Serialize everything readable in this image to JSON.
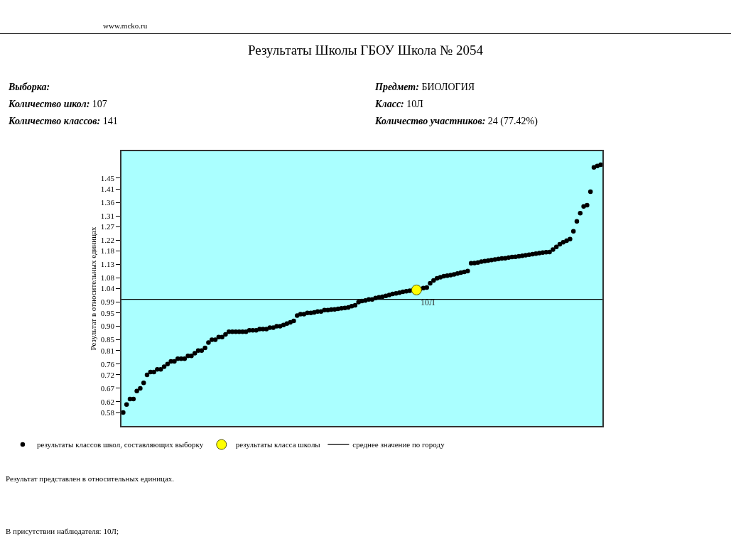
{
  "chart_data": {
    "type": "scatter",
    "title": "Результаты Школы ГБОУ Школа № 2054",
    "ylabel": "Результат в относительных единицах",
    "annotations": [
      "www.mcko.ru",
      "Выборка:",
      "Предмет: БИОЛОГИЯ",
      "Количество школ: 107",
      "Класс: 10Л",
      "Количество классов: 141",
      "Количество участников: 24 (77.42%)",
      "Результат представлен в относительных единицах.",
      "В присутствии наблюдателя: 10Л;",
      {
        "text": "10Л",
        "y": 1.035
      }
    ],
    "categories": [
      null,
      null,
      null,
      null,
      null,
      null,
      null,
      null,
      null,
      null,
      null,
      null,
      null,
      null,
      null,
      null,
      null,
      null,
      null,
      null,
      null,
      null,
      null,
      null,
      null,
      null,
      null,
      null,
      null,
      null,
      null,
      null,
      null,
      null,
      null,
      null,
      null,
      null,
      null,
      null,
      null,
      null,
      null,
      null,
      null,
      null,
      null,
      null,
      null,
      null,
      null,
      null,
      null,
      null,
      null,
      null,
      null,
      null,
      null,
      null,
      null,
      null,
      null,
      null,
      null,
      null,
      null,
      null,
      null,
      null,
      null,
      null,
      null,
      null,
      null,
      null,
      null,
      null,
      null,
      null,
      null,
      null,
      null,
      null,
      null,
      null,
      null,
      null,
      null,
      null,
      null,
      null,
      null,
      null,
      null,
      null,
      null,
      null,
      null,
      null,
      null,
      null,
      null,
      null,
      null,
      null,
      null,
      null,
      null,
      null,
      null,
      null,
      null,
      null,
      null,
      null,
      null,
      null,
      null,
      null,
      null,
      null,
      null,
      null,
      null,
      null,
      null,
      null,
      null,
      null,
      null,
      null,
      null,
      null,
      null,
      null,
      null,
      null,
      null,
      null,
      null
    ],
    "series": [
      {
        "name": "результаты классов школ, составляющих выборку",
        "color": "#000000",
        "values": [
          0.58,
          0.61,
          0.63,
          0.63,
          0.66,
          0.67,
          0.69,
          0.72,
          0.73,
          0.73,
          0.74,
          0.74,
          0.75,
          0.76,
          0.77,
          0.77,
          0.78,
          0.78,
          0.78,
          0.79,
          0.79,
          0.8,
          0.81,
          0.81,
          0.82,
          0.84,
          0.85,
          0.85,
          0.86,
          0.86,
          0.87,
          0.88,
          0.88,
          0.88,
          0.88,
          0.88,
          0.88,
          0.885,
          0.885,
          0.885,
          0.89,
          0.89,
          0.89,
          0.895,
          0.895,
          0.9,
          0.9,
          0.905,
          0.91,
          0.915,
          0.92,
          0.94,
          0.945,
          0.945,
          0.95,
          0.95,
          0.952,
          0.955,
          0.955,
          0.96,
          0.96,
          0.962,
          0.963,
          0.965,
          0.967,
          0.968,
          0.97,
          0.975,
          0.978,
          0.99,
          0.994,
          0.996,
          1.0,
          1.0,
          1.005,
          1.008,
          1.01,
          1.013,
          1.016,
          1.02,
          1.022,
          1.025,
          1.028,
          1.03,
          1.032,
          1.034,
          null,
          1.038,
          1.042,
          1.044,
          1.06,
          1.07,
          1.078,
          1.082,
          1.086,
          1.088,
          1.09,
          1.093,
          1.096,
          1.099,
          1.102,
          1.105,
          1.134,
          1.135,
          1.137,
          1.14,
          1.142,
          1.144,
          1.146,
          1.148,
          1.15,
          1.152,
          1.153,
          1.155,
          1.157,
          1.158,
          1.16,
          1.162,
          1.164,
          1.166,
          1.168,
          1.17,
          1.172,
          1.174,
          1.175,
          1.176,
          1.185,
          1.195,
          1.205,
          1.212,
          1.218,
          1.224,
          1.253,
          1.29,
          1.32,
          1.345,
          1.35,
          1.4,
          1.49,
          1.495,
          1.5
        ]
      },
      {
        "name": "результаты класса школы",
        "color": "#ffff00",
        "values": [
          null,
          null,
          null,
          null,
          null,
          null,
          null,
          null,
          null,
          null,
          null,
          null,
          null,
          null,
          null,
          null,
          null,
          null,
          null,
          null,
          null,
          null,
          null,
          null,
          null,
          null,
          null,
          null,
          null,
          null,
          null,
          null,
          null,
          null,
          null,
          null,
          null,
          null,
          null,
          null,
          null,
          null,
          null,
          null,
          null,
          null,
          null,
          null,
          null,
          null,
          null,
          null,
          null,
          null,
          null,
          null,
          null,
          null,
          null,
          null,
          null,
          null,
          null,
          null,
          null,
          null,
          null,
          null,
          null,
          null,
          null,
          null,
          null,
          null,
          null,
          null,
          null,
          null,
          null,
          null,
          null,
          null,
          null,
          null,
          null,
          null,
          1.035,
          null,
          null,
          null,
          null,
          null,
          null,
          null,
          null,
          null,
          null,
          null,
          null,
          null,
          null,
          null,
          null,
          null,
          null,
          null,
          null,
          null,
          null,
          null,
          null,
          null,
          null,
          null,
          null,
          null,
          null,
          null,
          null,
          null,
          null,
          null,
          null,
          null,
          null,
          null,
          null,
          null,
          null,
          null,
          null,
          null,
          null,
          null,
          null,
          null,
          null,
          null,
          null,
          null,
          null
        ]
      }
    ],
    "ref_lines": [
      {
        "axis": "y",
        "value": 1.0,
        "label": "среднее значение по городу",
        "color": "#000000"
      }
    ],
    "ylim": [
      0.53,
      1.55
    ],
    "yticks": [
      0.58,
      0.62,
      0.67,
      0.72,
      0.76,
      0.81,
      0.85,
      {
        "value": 0.9,
        "label": "0.90"
      },
      0.95,
      0.99,
      1.04,
      1.08,
      1.13,
      1.18,
      1.22,
      1.27,
      1.31,
      1.36,
      1.41,
      1.45
    ],
    "grid": false,
    "legend": "bottom",
    "marker": "circle"
  }
}
